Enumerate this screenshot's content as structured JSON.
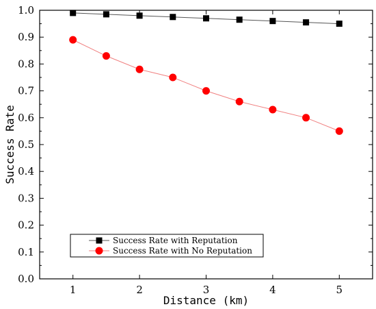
{
  "chart_data": {
    "type": "line",
    "title": "",
    "xlabel": "Distance (km)",
    "ylabel": "Success Rate",
    "xlim": [
      0.5,
      5.5
    ],
    "ylim": [
      0.0,
      1.0
    ],
    "x_ticks": [
      1,
      2,
      3,
      4,
      5
    ],
    "y_ticks": [
      0.0,
      0.1,
      0.2,
      0.3,
      0.4,
      0.5,
      0.6,
      0.7,
      0.8,
      0.9,
      1.0
    ],
    "x_tick_labels": [
      "1",
      "2",
      "3",
      "4",
      "5"
    ],
    "y_tick_labels": [
      "0.0",
      "0.1",
      "0.2",
      "0.3",
      "0.4",
      "0.5",
      "0.6",
      "0.7",
      "0.8",
      "0.9",
      "1.0"
    ],
    "x": [
      1,
      1.5,
      2,
      2.5,
      3,
      3.5,
      4,
      4.5,
      5
    ],
    "grid": false,
    "legend_position": "lower-left",
    "series": [
      {
        "name": "Success Rate with Reputation",
        "marker": "square",
        "color": "#000000",
        "line_color": "#555555",
        "values": [
          0.99,
          0.985,
          0.98,
          0.975,
          0.97,
          0.965,
          0.96,
          0.955,
          0.95
        ]
      },
      {
        "name": "Success Rate with No Reputation",
        "marker": "circle",
        "color": "#ff0000",
        "line_color": "#f08080",
        "values": [
          0.89,
          0.83,
          0.78,
          0.75,
          0.7,
          0.66,
          0.63,
          0.6,
          0.55
        ]
      }
    ]
  }
}
